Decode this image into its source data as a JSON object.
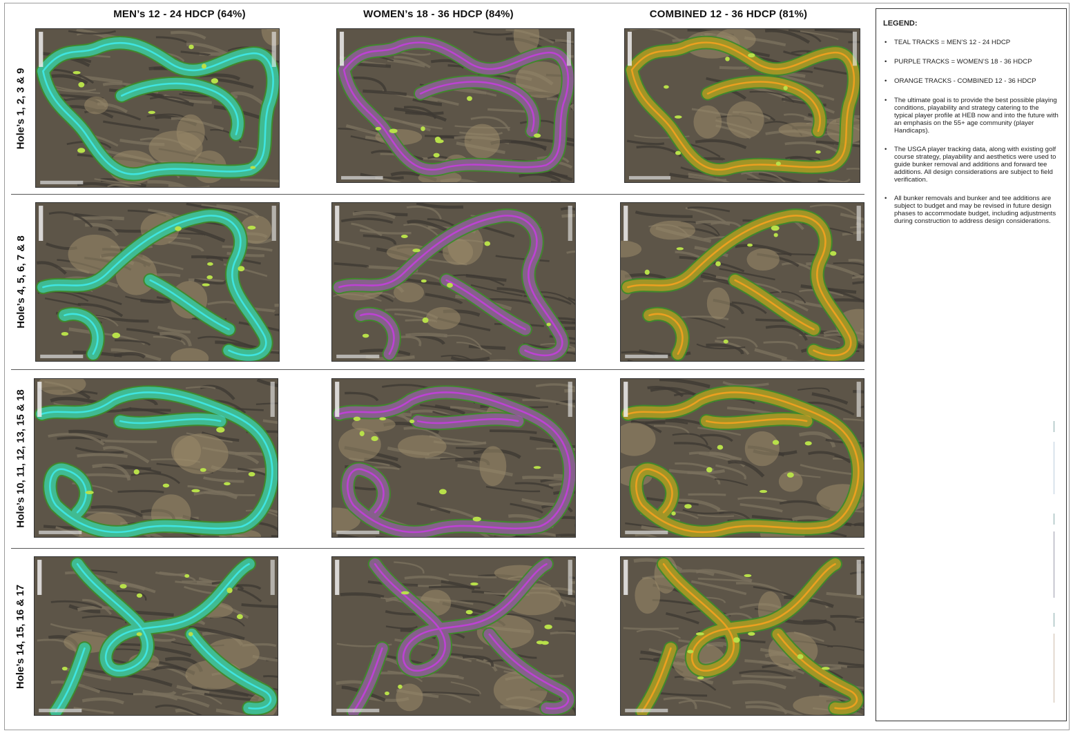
{
  "columns": [
    {
      "title": "MEN’s 12 - 24 HDCP (64%)",
      "track": "teal"
    },
    {
      "title": "WOMEN’s 18 - 36 HDCP (84%)",
      "track": "purple"
    },
    {
      "title": "COMBINED 12 - 36 HDCP (81%)",
      "track": "orange"
    }
  ],
  "rows": [
    {
      "label": "Hole’s 1, 2, 3 & 9"
    },
    {
      "label": "Hole’s 4, 5, 6, 7 & 8"
    },
    {
      "label": "Hole’s 10, 11, 12, 13, 15 & 18"
    },
    {
      "label": "Hole’s 14, 15, 16 & 17"
    }
  ],
  "track_colors": {
    "teal": "#3fe6e6",
    "purple": "#c040d8",
    "orange": "#f0a020"
  },
  "map_colors": {
    "houses": "#5d5548",
    "fairway": "#3f8a2c",
    "green": "#b8e04a",
    "dirt": "#9a8a6a"
  },
  "legend": {
    "title": "LEGEND:",
    "items": [
      "TEAL TRACKS = MEN’S 12 - 24 HDCP",
      "PURPLE TRACKS = WOMEN’S 18 - 36 HDCP",
      "ORANGE TRACKS - COMBINED 12 - 36 HDCP",
      "The ultimate goal is to provide the best possible playing conditions, playability and strategy catering to the typical player profile at HEB now and into the future with an emphasis on the 55+ age community (player Handicaps).",
      "The USGA player tracking data, along with existing golf course strategy, playability and aesthetics were used to guide bunker removal and additions and forward tee additions. All design considerations are subject to field verification.",
      "All bunker removals and bunker and tee additions are subject to budget and may be revised in future design phases to accommodate budget, including adjustments during construction to address design considerations."
    ]
  }
}
